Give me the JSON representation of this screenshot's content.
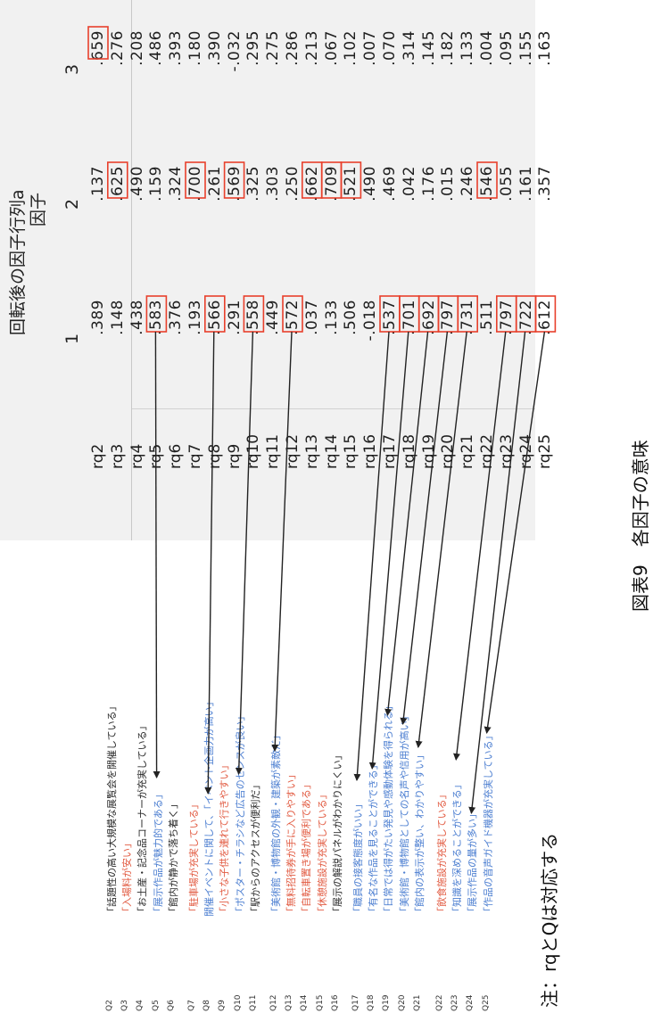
{
  "table": {
    "title": "回転後の因子行列a",
    "factor_header": "因子",
    "factor_numbers": [
      "1",
      "2",
      "3"
    ],
    "rows": [
      {
        "label": "rq2",
        "v": [
          ".389",
          ".137",
          ".659"
        ]
      },
      {
        "label": "rq3",
        "v": [
          ".148",
          ".625",
          ".276"
        ]
      },
      {
        "label": "rq4",
        "v": [
          ".438",
          ".490",
          ".208"
        ]
      },
      {
        "label": "rq5",
        "v": [
          ".583",
          ".159",
          ".486"
        ]
      },
      {
        "label": "rq6",
        "v": [
          ".376",
          ".324",
          ".393"
        ]
      },
      {
        "label": "rq7",
        "v": [
          ".193",
          ".700",
          ".180"
        ]
      },
      {
        "label": "rq8",
        "v": [
          ".566",
          ".261",
          ".390"
        ]
      },
      {
        "label": "rq9",
        "v": [
          ".291",
          ".569",
          "-.032"
        ]
      },
      {
        "label": "rq10",
        "v": [
          ".558",
          ".325",
          ".295"
        ]
      },
      {
        "label": "rq11",
        "v": [
          ".449",
          ".303",
          ".275"
        ]
      },
      {
        "label": "rq12",
        "v": [
          ".572",
          ".250",
          ".286"
        ]
      },
      {
        "label": "rq13",
        "v": [
          ".037",
          ".662",
          ".213"
        ]
      },
      {
        "label": "rq14",
        "v": [
          ".133",
          ".709",
          ".067"
        ]
      },
      {
        "label": "rq15",
        "v": [
          ".506",
          ".521",
          ".102"
        ]
      },
      {
        "label": "rq16",
        "v": [
          "-.018",
          ".490",
          ".007"
        ]
      },
      {
        "label": "rq17",
        "v": [
          ".537",
          ".469",
          ".070"
        ]
      },
      {
        "label": "rq18",
        "v": [
          ".701",
          ".042",
          ".314"
        ]
      },
      {
        "label": "rq19",
        "v": [
          ".692",
          ".176",
          ".145"
        ]
      },
      {
        "label": "rq20",
        "v": [
          ".797",
          ".015",
          ".182"
        ]
      },
      {
        "label": "rq21",
        "v": [
          ".731",
          ".246",
          ".133"
        ]
      },
      {
        "label": "rq22",
        "v": [
          ".511",
          ".546",
          ".004"
        ]
      },
      {
        "label": "rq23",
        "v": [
          ".797",
          ".055",
          ".095"
        ]
      },
      {
        "label": "rq24",
        "v": [
          ".722",
          ".161",
          ".155"
        ]
      },
      {
        "label": "rq25",
        "v": [
          ".612",
          ".357",
          ".163"
        ]
      }
    ]
  },
  "items": [
    {
      "q": "Q2",
      "text": "「話題性の高い大規模な展覧会を開催している」",
      "color": "black"
    },
    {
      "q": "Q3",
      "text": "「入場料が安い」",
      "color": "red"
    },
    {
      "q": "Q4",
      "text": "「お土産・記念品コーナーが充実している」",
      "color": "black"
    },
    {
      "q": "Q5",
      "text": "「展示作品が魅力的である」",
      "color": "blue"
    },
    {
      "q": "Q6",
      "text": "「館内が静かで落ち着く」",
      "color": "black"
    },
    {
      "q": "Q7",
      "text": "「駐車場が充実している」",
      "color": "red"
    },
    {
      "q": "Q8",
      "text": "開催イベントに関して、「イベント企画力が高い」",
      "color": "blue"
    },
    {
      "q": "Q9",
      "text": "「小さな子供を連れて行きやすい」",
      "color": "red"
    },
    {
      "q": "Q10",
      "text": "「ポスター・チラシなど広告のセンスが良い」",
      "color": "blue"
    },
    {
      "q": "Q11",
      "text": "「駅からのアクセスが便利だ」",
      "color": "black"
    },
    {
      "q": "Q12",
      "text": "「美術館・博物館の外観・建築が素敵だ」",
      "color": "blue"
    },
    {
      "q": "Q13",
      "text": "「無料招待券が手に入りやすい」",
      "color": "red"
    },
    {
      "q": "Q14",
      "text": "「自転車置き場が便利である」",
      "color": "red"
    },
    {
      "q": "Q15",
      "text": "「休憩施設が充実している」",
      "color": "red"
    },
    {
      "q": "Q16",
      "text": "「展示の解説パネルがわかりにくい」",
      "color": "black"
    },
    {
      "q": "Q17",
      "text": "「職員の接客態度がいい」",
      "color": "blue"
    },
    {
      "q": "Q18",
      "text": "「有名な作品を見ることができる」",
      "color": "blue"
    },
    {
      "q": "Q19",
      "text": "「日常では得がたい発見や感動体験を得られる」",
      "color": "blue"
    },
    {
      "q": "Q20",
      "text": "「美術館・博物館としての名声や信用が高い」",
      "color": "blue"
    },
    {
      "q": "Q21",
      "text": "「館内の表示が整い、わかりやすい」",
      "color": "blue"
    },
    {
      "q": "Q22",
      "text": "「飲食施設が充実している」",
      "color": "red"
    },
    {
      "q": "Q23",
      "text": "「知識を深めることができる」",
      "color": "blue"
    },
    {
      "q": "Q24",
      "text": "「展示作品の量が多い」",
      "color": "blue"
    },
    {
      "q": "Q25",
      "text": "「作品の音声ガイド機器が充実している」",
      "color": "blue"
    }
  ],
  "caption": "図表9　各因子の意味",
  "note": "注：rqとQは対応する",
  "colors": {
    "highlight_box": "#e8402c",
    "arrow": "#222222",
    "red_text": "#e25c43",
    "blue_text": "#4d7fd1",
    "table_bg": "#f1f1f1"
  }
}
